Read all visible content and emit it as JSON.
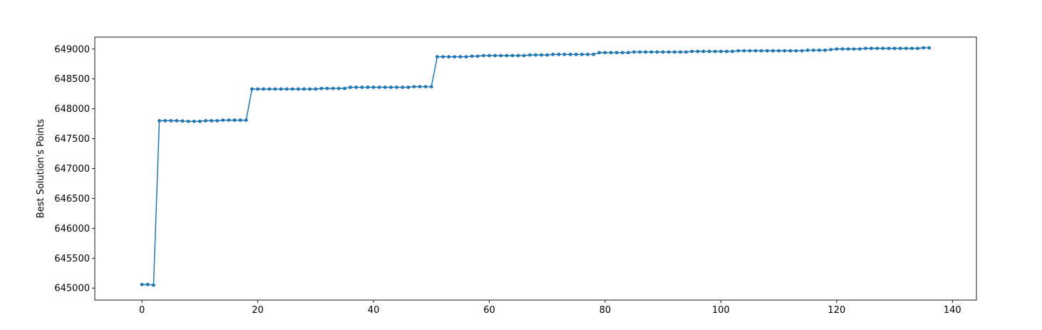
{
  "chart_data": {
    "type": "line",
    "title": "",
    "xlabel": "",
    "ylabel": "Best Solution's Points",
    "xlim": [
      -8.15,
      144.15
    ],
    "ylim": [
      644800,
      649200
    ],
    "xticks": [
      0,
      20,
      40,
      60,
      80,
      100,
      120,
      140
    ],
    "xtick_labels": [
      "0",
      "20",
      "40",
      "60",
      "80",
      "100",
      "120",
      "140"
    ],
    "yticks": [
      645000,
      645500,
      646000,
      646500,
      647000,
      647500,
      648000,
      648500,
      649000
    ],
    "ytick_labels": [
      "645000",
      "645500",
      "646000",
      "646500",
      "647000",
      "647500",
      "648000",
      "648500",
      "649000"
    ],
    "grid": false,
    "legend": "none",
    "line_color": "#1f77b4",
    "series": [
      {
        "marker": "circle",
        "x": [
          0,
          1,
          2,
          3,
          4,
          5,
          6,
          7,
          8,
          9,
          10,
          11,
          12,
          13,
          14,
          15,
          16,
          17,
          18,
          19,
          20,
          21,
          22,
          23,
          24,
          25,
          26,
          27,
          28,
          29,
          30,
          31,
          32,
          33,
          34,
          35,
          36,
          37,
          38,
          39,
          40,
          41,
          42,
          43,
          44,
          45,
          46,
          47,
          48,
          49,
          50,
          51,
          52,
          53,
          54,
          55,
          56,
          57,
          58,
          59,
          60,
          61,
          62,
          63,
          64,
          65,
          66,
          67,
          68,
          69,
          70,
          71,
          72,
          73,
          74,
          75,
          76,
          77,
          78,
          79,
          80,
          81,
          82,
          83,
          84,
          85,
          86,
          87,
          88,
          89,
          90,
          91,
          92,
          93,
          94,
          95,
          96,
          97,
          98,
          99,
          100,
          101,
          102,
          103,
          104,
          105,
          106,
          107,
          108,
          109,
          110,
          111,
          112,
          113,
          114,
          115,
          116,
          117,
          118,
          119,
          120,
          121,
          122,
          123,
          124,
          125,
          126,
          127,
          128,
          129,
          130,
          131,
          132,
          133,
          134,
          135,
          136
        ],
        "y": [
          645060,
          645060,
          645050,
          647800,
          647800,
          647800,
          647800,
          647795,
          647790,
          647790,
          647790,
          647800,
          647800,
          647800,
          647810,
          647810,
          647810,
          647810,
          647810,
          648330,
          648330,
          648330,
          648330,
          648330,
          648330,
          648330,
          648330,
          648330,
          648330,
          648330,
          648330,
          648340,
          648340,
          648340,
          648340,
          648340,
          648360,
          648360,
          648360,
          648360,
          648360,
          648360,
          648360,
          648360,
          648360,
          648360,
          648360,
          648370,
          648370,
          648370,
          648370,
          648870,
          648870,
          648870,
          648870,
          648870,
          648870,
          648880,
          648880,
          648890,
          648890,
          648890,
          648890,
          648890,
          648890,
          648890,
          648890,
          648900,
          648900,
          648900,
          648900,
          648910,
          648910,
          648910,
          648910,
          648910,
          648910,
          648910,
          648910,
          648940,
          648940,
          648940,
          648940,
          648940,
          648940,
          648950,
          648950,
          648950,
          648950,
          648950,
          648950,
          648950,
          648950,
          648950,
          648950,
          648960,
          648960,
          648960,
          648960,
          648960,
          648960,
          648960,
          648960,
          648970,
          648970,
          648970,
          648970,
          648970,
          648970,
          648970,
          648970,
          648970,
          648970,
          648970,
          648970,
          648980,
          648980,
          648980,
          648980,
          648990,
          649000,
          649000,
          649000,
          649000,
          649000,
          649010,
          649010,
          649010,
          649010,
          649010,
          649010,
          649010,
          649010,
          649010,
          649010,
          649020,
          649020
        ]
      }
    ]
  }
}
